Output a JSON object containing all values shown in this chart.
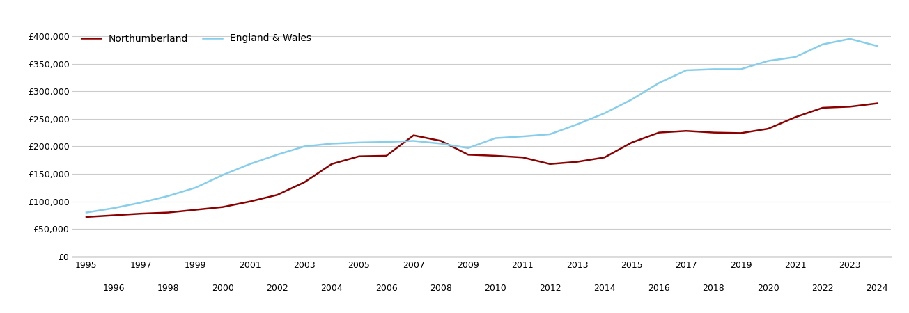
{
  "northumberland": {
    "years": [
      1995,
      1996,
      1997,
      1998,
      1999,
      2000,
      2001,
      2002,
      2003,
      2004,
      2005,
      2006,
      2007,
      2008,
      2009,
      2010,
      2011,
      2012,
      2013,
      2014,
      2015,
      2016,
      2017,
      2018,
      2019,
      2020,
      2021,
      2022,
      2023,
      2024
    ],
    "values": [
      72000,
      75000,
      78000,
      80000,
      85000,
      90000,
      100000,
      112000,
      135000,
      168000,
      182000,
      183000,
      220000,
      210000,
      185000,
      183000,
      180000,
      168000,
      172000,
      180000,
      207000,
      225000,
      228000,
      225000,
      224000,
      232000,
      253000,
      270000,
      272000,
      278000
    ]
  },
  "england_wales": {
    "years": [
      1995,
      1996,
      1997,
      1998,
      1999,
      2000,
      2001,
      2002,
      2003,
      2004,
      2005,
      2006,
      2007,
      2008,
      2009,
      2010,
      2011,
      2012,
      2013,
      2014,
      2015,
      2016,
      2017,
      2018,
      2019,
      2020,
      2021,
      2022,
      2023,
      2024
    ],
    "values": [
      80000,
      88000,
      98000,
      110000,
      125000,
      148000,
      168000,
      185000,
      200000,
      205000,
      207000,
      208000,
      210000,
      205000,
      197000,
      215000,
      218000,
      222000,
      240000,
      260000,
      285000,
      315000,
      338000,
      340000,
      340000,
      355000,
      362000,
      385000,
      395000,
      382000
    ]
  },
  "northumberland_color": "#8B0000",
  "england_wales_color": "#87CEEB",
  "background_color": "#ffffff",
  "grid_color": "#cccccc",
  "legend_labels": [
    "Northumberland",
    "England & Wales"
  ],
  "ylim": [
    0,
    420000
  ],
  "yticks": [
    0,
    50000,
    100000,
    150000,
    200000,
    250000,
    300000,
    350000,
    400000
  ],
  "xlim": [
    1994.5,
    2024.5
  ],
  "line_width": 1.8,
  "odd_years": [
    1995,
    1997,
    1999,
    2001,
    2003,
    2005,
    2007,
    2009,
    2011,
    2013,
    2015,
    2017,
    2019,
    2021,
    2023
  ],
  "even_years": [
    1996,
    1998,
    2000,
    2002,
    2004,
    2006,
    2008,
    2010,
    2012,
    2014,
    2016,
    2018,
    2020,
    2022,
    2024
  ]
}
